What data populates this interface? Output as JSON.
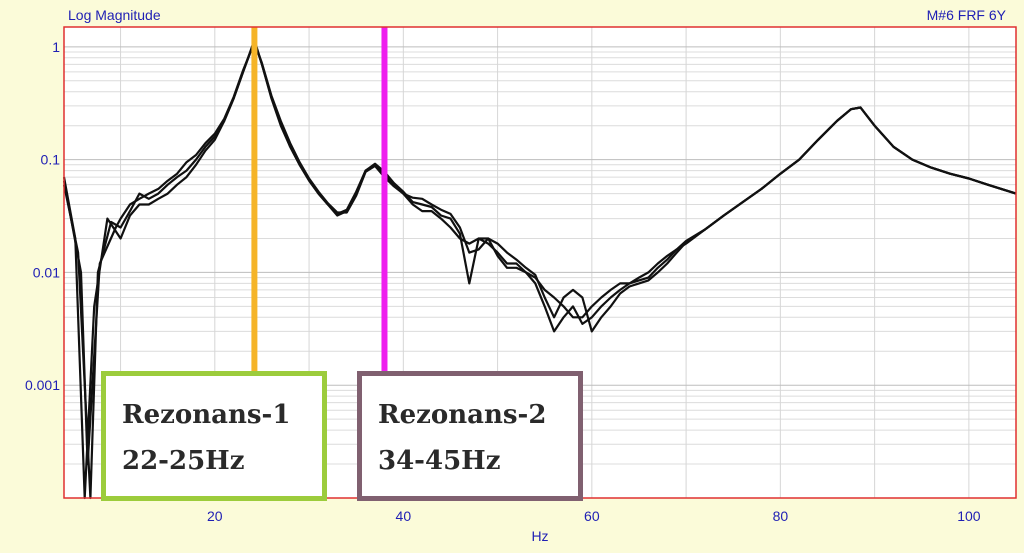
{
  "chart_data": {
    "type": "line",
    "title": "Log Magnitude",
    "subtitle": "M#6 FRF 6Y",
    "xlabel": "Hz",
    "ylabel": "",
    "xlim": [
      4,
      105
    ],
    "ylim": [
      0.0001,
      1.5
    ],
    "yscale": "log",
    "x_ticks": [
      20,
      40,
      60,
      80,
      100
    ],
    "y_ticks": [
      {
        "v": 1,
        "label": "1"
      },
      {
        "v": 0.1,
        "label": "0.1"
      },
      {
        "v": 0.01,
        "label": "0.01"
      },
      {
        "v": 0.001,
        "label": "0.001"
      }
    ],
    "grid": true,
    "colors": {
      "background": "#fbfbd9",
      "plot_bg": "#ffffff",
      "frame": "#e03030",
      "axis_text": "#1f1fb4",
      "trace": "#111111",
      "marker1": "#f5b428",
      "marker2": "#ee1fee",
      "box1_border": "#9ccc3c",
      "box2_border": "#806070"
    },
    "series": [
      {
        "values": [
          [
            4,
            0.07
          ],
          [
            5.2,
            0.02
          ],
          [
            6.2,
            0.0001
          ],
          [
            7.2,
            0.005
          ],
          [
            8.6,
            0.03
          ],
          [
            10,
            0.02
          ],
          [
            11,
            0.032
          ],
          [
            12,
            0.04
          ],
          [
            13,
            0.04
          ],
          [
            14,
            0.045
          ],
          [
            15,
            0.05
          ],
          [
            16,
            0.06
          ],
          [
            17,
            0.07
          ],
          [
            18,
            0.09
          ],
          [
            19,
            0.12
          ],
          [
            20,
            0.15
          ],
          [
            21,
            0.22
          ],
          [
            22,
            0.35
          ],
          [
            23,
            0.6
          ],
          [
            24.2,
            1.15
          ],
          [
            25,
            0.7
          ],
          [
            26,
            0.35
          ],
          [
            27,
            0.2
          ],
          [
            28,
            0.13
          ],
          [
            29,
            0.09
          ],
          [
            30,
            0.065
          ],
          [
            31,
            0.05
          ],
          [
            32,
            0.04
          ],
          [
            33,
            0.032
          ],
          [
            34,
            0.035
          ],
          [
            35,
            0.05
          ],
          [
            36,
            0.08
          ],
          [
            37,
            0.09
          ],
          [
            38,
            0.075
          ],
          [
            39,
            0.06
          ],
          [
            40,
            0.05
          ],
          [
            41,
            0.04
          ],
          [
            42,
            0.035
          ],
          [
            43,
            0.035
          ],
          [
            44,
            0.03
          ],
          [
            45,
            0.025
          ],
          [
            46,
            0.02
          ],
          [
            47,
            0.018
          ],
          [
            48,
            0.02
          ],
          [
            49,
            0.018
          ],
          [
            50,
            0.015
          ],
          [
            51,
            0.012
          ],
          [
            52,
            0.012
          ],
          [
            53,
            0.01
          ],
          [
            54,
            0.009
          ],
          [
            55,
            0.007
          ],
          [
            56,
            0.006
          ],
          [
            57,
            0.005
          ],
          [
            58,
            0.004
          ],
          [
            59,
            0.004
          ],
          [
            60,
            0.005
          ],
          [
            61,
            0.006
          ],
          [
            62,
            0.007
          ],
          [
            63,
            0.008
          ],
          [
            64,
            0.008
          ],
          [
            65,
            0.009
          ],
          [
            66,
            0.01
          ],
          [
            67,
            0.012
          ],
          [
            68,
            0.014
          ],
          [
            69,
            0.016
          ],
          [
            70,
            0.019
          ],
          [
            72,
            0.024
          ],
          [
            74,
            0.032
          ],
          [
            76,
            0.042
          ],
          [
            78,
            0.055
          ],
          [
            80,
            0.075
          ],
          [
            82,
            0.1
          ],
          [
            84,
            0.15
          ],
          [
            86,
            0.22
          ],
          [
            87.5,
            0.28
          ],
          [
            88.5,
            0.29
          ],
          [
            90,
            0.2
          ],
          [
            92,
            0.13
          ],
          [
            94,
            0.1
          ],
          [
            96,
            0.085
          ],
          [
            98,
            0.075
          ],
          [
            100,
            0.068
          ],
          [
            102,
            0.06
          ],
          [
            105,
            0.05
          ]
        ]
      },
      {
        "values": [
          [
            4,
            0.06
          ],
          [
            5.5,
            0.015
          ],
          [
            6.8,
            0.0001
          ],
          [
            7.6,
            0.01
          ],
          [
            9,
            0.028
          ],
          [
            10,
            0.025
          ],
          [
            11,
            0.035
          ],
          [
            12,
            0.05
          ],
          [
            13,
            0.045
          ],
          [
            14,
            0.05
          ],
          [
            15,
            0.06
          ],
          [
            16,
            0.07
          ],
          [
            17,
            0.08
          ],
          [
            18,
            0.1
          ],
          [
            19,
            0.13
          ],
          [
            20,
            0.16
          ],
          [
            21,
            0.22
          ],
          [
            22,
            0.35
          ],
          [
            23,
            0.6
          ],
          [
            24.2,
            1.12
          ],
          [
            25,
            0.7
          ],
          [
            26,
            0.36
          ],
          [
            27,
            0.21
          ],
          [
            28,
            0.13
          ],
          [
            29,
            0.09
          ],
          [
            30,
            0.066
          ],
          [
            31,
            0.05
          ],
          [
            32,
            0.04
          ],
          [
            33,
            0.033
          ],
          [
            34,
            0.036
          ],
          [
            35,
            0.052
          ],
          [
            36,
            0.08
          ],
          [
            37,
            0.092
          ],
          [
            38,
            0.078
          ],
          [
            39,
            0.062
          ],
          [
            40,
            0.052
          ],
          [
            41,
            0.042
          ],
          [
            42,
            0.04
          ],
          [
            43,
            0.038
          ],
          [
            44,
            0.032
          ],
          [
            45,
            0.03
          ],
          [
            46,
            0.022
          ],
          [
            47,
            0.008
          ],
          [
            48,
            0.02
          ],
          [
            49,
            0.02
          ],
          [
            50,
            0.014
          ],
          [
            51,
            0.011
          ],
          [
            52,
            0.011
          ],
          [
            53,
            0.01
          ],
          [
            54,
            0.008
          ],
          [
            55,
            0.005
          ],
          [
            56,
            0.003
          ],
          [
            57,
            0.004
          ],
          [
            58,
            0.005
          ],
          [
            59,
            0.0035
          ],
          [
            60,
            0.004
          ],
          [
            61,
            0.005
          ],
          [
            62,
            0.006
          ],
          [
            63,
            0.007
          ],
          [
            64,
            0.008
          ],
          [
            65,
            0.0085
          ],
          [
            66,
            0.009
          ],
          [
            67,
            0.011
          ],
          [
            68,
            0.013
          ],
          [
            69,
            0.016
          ],
          [
            70,
            0.018
          ],
          [
            72,
            0.024
          ],
          [
            74,
            0.032
          ],
          [
            76,
            0.042
          ],
          [
            78,
            0.055
          ],
          [
            80,
            0.075
          ],
          [
            82,
            0.1
          ],
          [
            84,
            0.15
          ],
          [
            86,
            0.22
          ],
          [
            87.5,
            0.28
          ],
          [
            88.5,
            0.29
          ],
          [
            90,
            0.2
          ],
          [
            92,
            0.13
          ],
          [
            94,
            0.1
          ],
          [
            96,
            0.085
          ],
          [
            98,
            0.075
          ],
          [
            100,
            0.068
          ],
          [
            102,
            0.06
          ],
          [
            105,
            0.05
          ]
        ]
      },
      {
        "values": [
          [
            4,
            0.065
          ],
          [
            5.8,
            0.01
          ],
          [
            6.5,
            0.0002
          ],
          [
            7.8,
            0.012
          ],
          [
            9.5,
            0.025
          ],
          [
            10,
            0.03
          ],
          [
            11,
            0.04
          ],
          [
            12,
            0.045
          ],
          [
            13,
            0.05
          ],
          [
            14,
            0.055
          ],
          [
            15,
            0.065
          ],
          [
            16,
            0.075
          ],
          [
            17,
            0.095
          ],
          [
            18,
            0.11
          ],
          [
            19,
            0.14
          ],
          [
            20,
            0.17
          ],
          [
            21,
            0.23
          ],
          [
            22,
            0.36
          ],
          [
            23,
            0.62
          ],
          [
            24.2,
            1.1
          ],
          [
            25,
            0.72
          ],
          [
            26,
            0.37
          ],
          [
            27,
            0.22
          ],
          [
            28,
            0.14
          ],
          [
            29,
            0.095
          ],
          [
            30,
            0.068
          ],
          [
            31,
            0.052
          ],
          [
            32,
            0.041
          ],
          [
            33,
            0.034
          ],
          [
            34,
            0.034
          ],
          [
            35,
            0.048
          ],
          [
            36,
            0.078
          ],
          [
            37,
            0.088
          ],
          [
            38,
            0.07
          ],
          [
            39,
            0.058
          ],
          [
            40,
            0.05
          ],
          [
            41,
            0.046
          ],
          [
            42,
            0.045
          ],
          [
            43,
            0.04
          ],
          [
            44,
            0.036
          ],
          [
            45,
            0.033
          ],
          [
            46,
            0.025
          ],
          [
            47,
            0.015
          ],
          [
            48,
            0.016
          ],
          [
            49,
            0.02
          ],
          [
            50,
            0.018
          ],
          [
            51,
            0.015
          ],
          [
            52,
            0.013
          ],
          [
            53,
            0.011
          ],
          [
            54,
            0.0095
          ],
          [
            55,
            0.006
          ],
          [
            56,
            0.004
          ],
          [
            57,
            0.006
          ],
          [
            58,
            0.007
          ],
          [
            59,
            0.006
          ],
          [
            60,
            0.003
          ],
          [
            61,
            0.004
          ],
          [
            62,
            0.005
          ],
          [
            63,
            0.0065
          ],
          [
            64,
            0.0075
          ],
          [
            65,
            0.008
          ],
          [
            66,
            0.0085
          ],
          [
            67,
            0.01
          ],
          [
            68,
            0.012
          ],
          [
            69,
            0.015
          ],
          [
            70,
            0.0185
          ],
          [
            72,
            0.024
          ],
          [
            74,
            0.032
          ],
          [
            76,
            0.042
          ],
          [
            78,
            0.055
          ],
          [
            80,
            0.075
          ],
          [
            82,
            0.1
          ],
          [
            84,
            0.15
          ],
          [
            86,
            0.22
          ],
          [
            87.5,
            0.28
          ],
          [
            88.5,
            0.29
          ],
          [
            90,
            0.2
          ],
          [
            92,
            0.13
          ],
          [
            94,
            0.1
          ],
          [
            96,
            0.085
          ],
          [
            98,
            0.075
          ],
          [
            100,
            0.068
          ],
          [
            102,
            0.06
          ],
          [
            105,
            0.05
          ]
        ]
      }
    ],
    "annotations": [
      {
        "name": "resonance-1",
        "x": 24.2,
        "line1": "Rezonans-1",
        "line2": "22-25Hz"
      },
      {
        "name": "resonance-2",
        "x": 38,
        "line1": "Rezonans-2",
        "line2": "34-45Hz"
      }
    ]
  }
}
